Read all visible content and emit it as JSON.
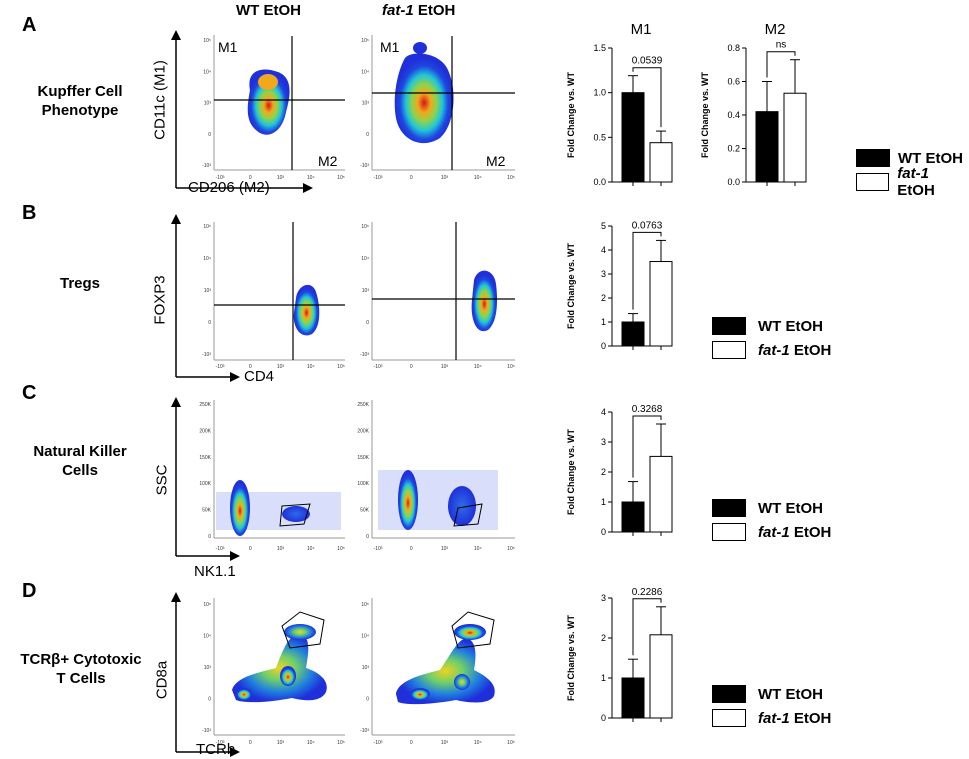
{
  "columns": {
    "wt": "WT EtOH",
    "fat1_italic": "fat-1",
    "fat1_rest": " EtOH"
  },
  "panels": [
    {
      "letter": "A",
      "label_lines": [
        "Kupffer Cell",
        "Phenotype"
      ],
      "y_axis": "CD11c (M1)",
      "x_axis": "CD206 (M2)",
      "q_top_left": "M1",
      "q_bot_right": "M2"
    },
    {
      "letter": "B",
      "label_lines": [
        "Tregs"
      ],
      "y_axis": "FOXP3",
      "x_axis": "CD4"
    },
    {
      "letter": "C",
      "label_lines": [
        "Natural Killer",
        "Cells"
      ],
      "y_axis": "SSC",
      "x_axis": "NK1.1"
    },
    {
      "letter": "D",
      "label_lines": [
        "TCRβ+ Cytotoxic",
        "T Cells"
      ],
      "y_axis": "CD8a",
      "x_axis": "TCRb"
    }
  ],
  "flow_ticks": {
    "log": [
      "10⁵",
      "10⁴",
      "10³",
      "0",
      "-10³"
    ],
    "log_x": [
      "-10³",
      "0",
      "10³",
      "10⁴",
      "10⁵"
    ],
    "ssc": [
      "250K",
      "200K",
      "150K",
      "100K",
      "50K",
      "0"
    ]
  },
  "legend": {
    "wt": "WT EtOH",
    "fat1_italic": "fat-1",
    "fat1_rest": " EtOH",
    "wt_color": "#000000",
    "fat1_color": "#ffffff"
  },
  "chart_data": [
    {
      "id": "A-M1",
      "type": "bar",
      "title": "M1",
      "ylabel": "Fold Change vs. WT",
      "categories": [
        "WT EtOH",
        "fat-1 EtOH"
      ],
      "values": [
        1.0,
        0.44
      ],
      "errors": [
        0.19,
        0.13
      ],
      "ylim": [
        0,
        1.5
      ],
      "yticks": [
        "0.0",
        "0.5",
        "1.0",
        "1.5"
      ],
      "tick_values": [
        0,
        0.5,
        1.0,
        1.5
      ],
      "annotation": "0.0539"
    },
    {
      "id": "A-M2",
      "type": "bar",
      "title": "M2",
      "ylabel": "Fold Change vs. WT",
      "categories": [
        "WT EtOH",
        "fat-1 EtOH"
      ],
      "values": [
        0.42,
        0.53
      ],
      "errors": [
        0.18,
        0.2
      ],
      "ylim": [
        0,
        0.8
      ],
      "yticks": [
        "0.0",
        "0.2",
        "0.4",
        "0.6",
        "0.8"
      ],
      "tick_values": [
        0,
        0.2,
        0.4,
        0.6,
        0.8
      ],
      "annotation": "ns"
    },
    {
      "id": "B",
      "type": "bar",
      "title": "",
      "ylabel": "Fold Change vs. WT",
      "categories": [
        "WT EtOH",
        "fat-1 EtOH"
      ],
      "values": [
        1.0,
        3.52
      ],
      "errors": [
        0.35,
        0.88
      ],
      "ylim": [
        0,
        5
      ],
      "yticks": [
        "0",
        "1",
        "2",
        "3",
        "4",
        "5"
      ],
      "tick_values": [
        0,
        1,
        2,
        3,
        4,
        5
      ],
      "annotation": "0.0763"
    },
    {
      "id": "C",
      "type": "bar",
      "title": "",
      "ylabel": "Fold Change vs. WT",
      "categories": [
        "WT EtOH",
        "fat-1 EtOH"
      ],
      "values": [
        1.0,
        2.52
      ],
      "errors": [
        0.68,
        1.08
      ],
      "ylim": [
        0,
        4
      ],
      "yticks": [
        "0",
        "1",
        "2",
        "3",
        "4"
      ],
      "tick_values": [
        0,
        1,
        2,
        3,
        4
      ],
      "annotation": "0.3268"
    },
    {
      "id": "D",
      "type": "bar",
      "title": "",
      "ylabel": "Fold Change vs. WT",
      "categories": [
        "WT EtOH",
        "fat-1 EtOH"
      ],
      "values": [
        1.0,
        2.08
      ],
      "errors": [
        0.47,
        0.7
      ],
      "ylim": [
        0,
        3
      ],
      "yticks": [
        "0",
        "1",
        "2",
        "3"
      ],
      "tick_values": [
        0,
        1,
        2,
        3
      ],
      "annotation": "0.2286"
    }
  ]
}
